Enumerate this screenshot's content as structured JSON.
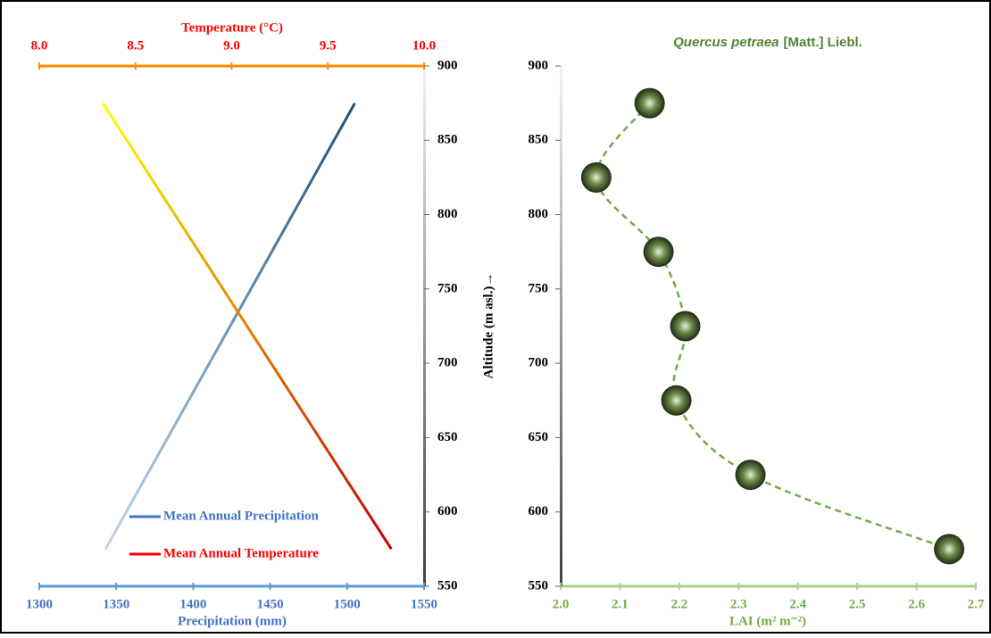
{
  "chart_data": [
    {
      "type": "line",
      "xlabel": "Precipitation (mm)",
      "x2label": "Temperature (°C)",
      "ylabel": "Altitude (m asl.)→",
      "xlim": [
        1300,
        1550
      ],
      "xticks": [
        1300,
        1350,
        1400,
        1450,
        1500,
        1550
      ],
      "x2lim": [
        8,
        10
      ],
      "x2ticks": [
        {
          "value": 8,
          "label": "8.0"
        },
        8.5,
        {
          "value": 9,
          "label": "9.0"
        },
        9.5,
        {
          "value": 10,
          "label": "10.0"
        }
      ],
      "ylim": [
        550,
        900
      ],
      "yticks": [
        550,
        600,
        650,
        700,
        750,
        800,
        850,
        900
      ],
      "series": [
        {
          "name": "Mean Annual Precipitation",
          "color": "#4472c4",
          "gradient": [
            "#bdd7ee",
            "#1f4e79"
          ],
          "x": [
            1343,
            1505
          ],
          "y": [
            575,
            875
          ]
        },
        {
          "name": "Mean Annual Temperature",
          "color": "#ff0000",
          "gradient": [
            "#ffff00",
            "#c00000"
          ],
          "axis": "x2",
          "x": [
            8.33,
            9.83
          ],
          "y": [
            875,
            575
          ]
        }
      ]
    },
    {
      "type": "scatter",
      "title": [
        "Quercus petraea",
        "[Matt.] Liebl."
      ],
      "xlabel": "LAI (m² m⁻²)",
      "xlim": [
        2,
        2.7
      ],
      "xticks": [
        {
          "value": 2,
          "label": "2.0"
        },
        2.1,
        2.2,
        2.3,
        2.4,
        2.5,
        2.6,
        2.7
      ],
      "ylim": [
        550,
        900
      ],
      "yticks": [
        550,
        600,
        650,
        700,
        750,
        800,
        850,
        900
      ],
      "color": "#70ad47",
      "x": [
        2.15,
        2.06,
        2.165,
        2.21,
        2.195,
        2.32,
        2.655
      ],
      "y": [
        875,
        825,
        775,
        725,
        675,
        625,
        575
      ]
    }
  ]
}
